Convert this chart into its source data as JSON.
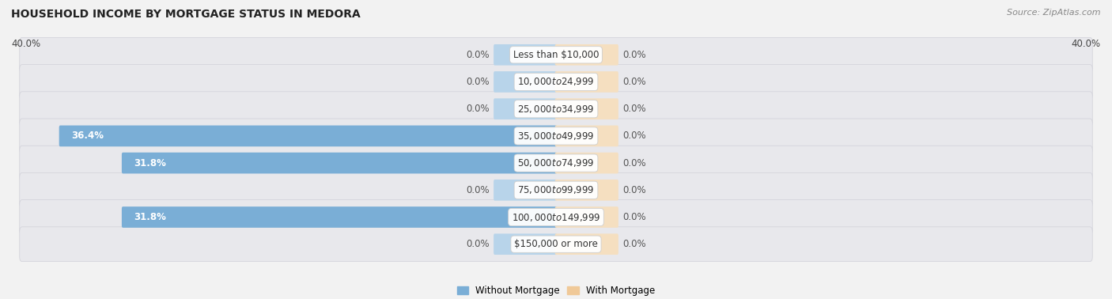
{
  "title": "HOUSEHOLD INCOME BY MORTGAGE STATUS IN MEDORA",
  "source": "Source: ZipAtlas.com",
  "categories": [
    "Less than $10,000",
    "$10,000 to $24,999",
    "$25,000 to $34,999",
    "$35,000 to $49,999",
    "$50,000 to $74,999",
    "$75,000 to $99,999",
    "$100,000 to $149,999",
    "$150,000 or more"
  ],
  "without_mortgage": [
    0.0,
    0.0,
    0.0,
    36.4,
    31.8,
    0.0,
    31.8,
    0.0
  ],
  "with_mortgage": [
    0.0,
    0.0,
    0.0,
    0.0,
    0.0,
    0.0,
    0.0,
    0.0
  ],
  "color_without": "#7aaed6",
  "color_with": "#f0c998",
  "color_without_stub": "#b8d4ea",
  "color_with_stub": "#f5dfc0",
  "xlim": 40.0,
  "stub_size": 4.5,
  "axis_label_left": "40.0%",
  "axis_label_right": "40.0%",
  "row_bg_color": "#e8e8ec",
  "fig_bg_color": "#f2f2f2",
  "label_fontsize": 8.5,
  "title_fontsize": 10,
  "source_fontsize": 8,
  "legend_fontsize": 8.5,
  "cat_label_fontsize": 8.5
}
